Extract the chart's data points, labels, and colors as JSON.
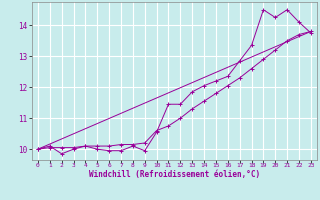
{
  "xlabel": "Windchill (Refroidissement éolien,°C)",
  "bg_color": "#c8ecec",
  "line_color": "#990099",
  "grid_color": "#ffffff",
  "xlim": [
    -0.5,
    23.5
  ],
  "ylim": [
    9.65,
    14.75
  ],
  "yticks": [
    10,
    11,
    12,
    13,
    14
  ],
  "xticks": [
    0,
    1,
    2,
    3,
    4,
    5,
    6,
    7,
    8,
    9,
    10,
    11,
    12,
    13,
    14,
    15,
    16,
    17,
    18,
    19,
    20,
    21,
    22,
    23
  ],
  "line1_x": [
    0,
    1,
    2,
    3,
    4,
    5,
    6,
    7,
    8,
    9,
    10,
    11,
    12,
    13,
    14,
    15,
    16,
    17,
    18,
    19,
    20,
    21,
    22,
    23
  ],
  "line1_y": [
    10.0,
    10.1,
    9.85,
    10.0,
    10.1,
    10.0,
    9.95,
    9.95,
    10.1,
    9.95,
    10.55,
    11.45,
    11.45,
    11.85,
    12.05,
    12.2,
    12.35,
    12.85,
    13.35,
    14.5,
    14.25,
    14.5,
    14.1,
    13.75
  ],
  "line2_x": [
    0,
    1,
    2,
    3,
    4,
    5,
    6,
    7,
    8,
    9,
    10,
    11,
    12,
    13,
    14,
    15,
    16,
    17,
    18,
    19,
    20,
    21,
    22,
    23
  ],
  "line2_y": [
    10.0,
    10.05,
    10.05,
    10.05,
    10.1,
    10.1,
    10.1,
    10.15,
    10.15,
    10.2,
    10.6,
    10.75,
    11.0,
    11.3,
    11.55,
    11.8,
    12.05,
    12.3,
    12.6,
    12.9,
    13.2,
    13.5,
    13.7,
    13.8
  ],
  "line3_x": [
    0,
    23
  ],
  "line3_y": [
    10.0,
    13.8
  ]
}
